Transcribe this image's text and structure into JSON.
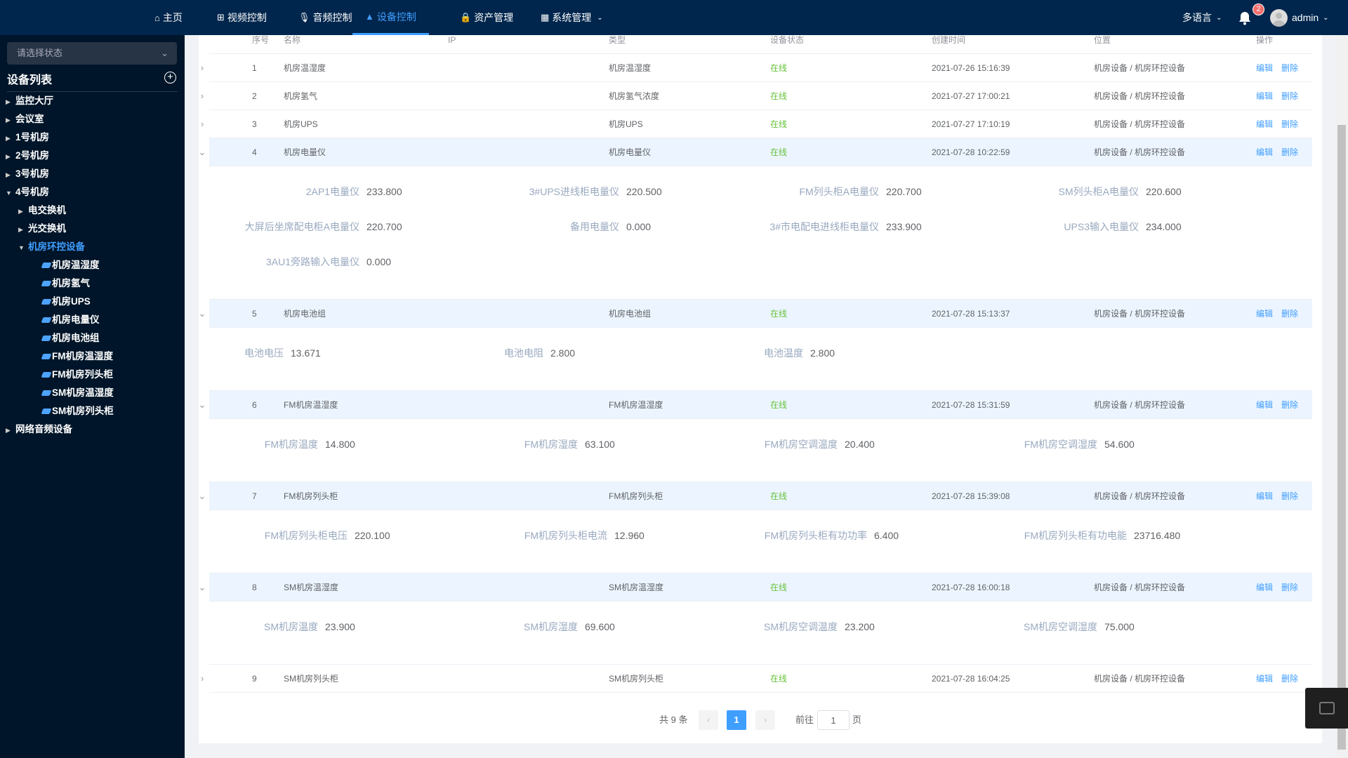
{
  "nav": {
    "items": [
      {
        "label": "主页",
        "icon": "home-icon"
      },
      {
        "label": "视频控制",
        "icon": "network-icon"
      },
      {
        "label": "音频控制",
        "icon": "microphone-icon"
      },
      {
        "label": "设备控制",
        "icon": "device-icon",
        "active": true
      },
      {
        "label": "资产管理",
        "icon": "lock-icon"
      },
      {
        "label": "系统管理",
        "icon": "grid-icon"
      }
    ],
    "language": "多语言",
    "notifications": "2",
    "user": "admin"
  },
  "sidebar": {
    "status_placeholder": "请选择状态",
    "title": "设备列表",
    "tree": [
      {
        "label": "监控大厅",
        "level": 0,
        "arrow": "right"
      },
      {
        "label": "会议室",
        "level": 0,
        "arrow": "right"
      },
      {
        "label": "1号机房",
        "level": 0,
        "arrow": "right"
      },
      {
        "label": "2号机房",
        "level": 0,
        "arrow": "right"
      },
      {
        "label": "3号机房",
        "level": 0,
        "arrow": "right"
      },
      {
        "label": "4号机房",
        "level": 0,
        "arrow": "down"
      },
      {
        "label": "电交换机",
        "level": 1,
        "arrow": "right"
      },
      {
        "label": "光交换机",
        "level": 1,
        "arrow": "right"
      },
      {
        "label": "机房环控设备",
        "level": 1,
        "arrow": "down",
        "active": true
      },
      {
        "label": "机房温湿度",
        "level": 2
      },
      {
        "label": "机房氢气",
        "level": 2
      },
      {
        "label": "机房UPS",
        "level": 2
      },
      {
        "label": "机房电量仪",
        "level": 2
      },
      {
        "label": "机房电池组",
        "level": 2
      },
      {
        "label": "FM机房温湿度",
        "level": 2
      },
      {
        "label": "FM机房列头柜",
        "level": 2
      },
      {
        "label": "SM机房温湿度",
        "level": 2
      },
      {
        "label": "SM机房列头柜",
        "level": 2
      },
      {
        "label": "网络音频设备",
        "level": 0,
        "arrow": "right"
      }
    ]
  },
  "table": {
    "columns": [
      "序号",
      "名称",
      "IP",
      "类型",
      "设备状态",
      "创建时间",
      "位置",
      "操作"
    ],
    "edit_label": "编辑",
    "delete_label": "删除",
    "rows": [
      {
        "no": "1",
        "name": "机房温湿度",
        "ip": "",
        "type": "机房温湿度",
        "status": "在线",
        "created": "2021-07-26 15:16:39",
        "location": "机房设备 / 机房环控设备",
        "expanded": false
      },
      {
        "no": "2",
        "name": "机房氢气",
        "ip": "",
        "type": "机房氢气浓度",
        "status": "在线",
        "created": "2021-07-27 17:00:21",
        "location": "机房设备 / 机房环控设备",
        "expanded": false
      },
      {
        "no": "3",
        "name": "机房UPS",
        "ip": "",
        "type": "机房UPS",
        "status": "在线",
        "created": "2021-07-27 17:10:19",
        "location": "机房设备 / 机房环控设备",
        "expanded": false
      },
      {
        "no": "4",
        "name": "机房电量仪",
        "ip": "",
        "type": "机房电量仪",
        "status": "在线",
        "created": "2021-07-28 10:22:59",
        "location": "机房设备 / 机房环控设备",
        "expanded": true,
        "details": [
          [
            "2AP1电量仪",
            "233.800"
          ],
          [
            "3#UPS进线柜电量仪",
            "220.500"
          ],
          [
            "FM列头柜A电量仪",
            "220.700"
          ],
          [
            "SM列头柜A电量仪",
            "220.600"
          ],
          [
            "大屏后坐席配电柜A电量仪",
            "220.700"
          ],
          [
            "备用电量仪",
            "0.000"
          ],
          [
            "3#市电配电进线柜电量仪",
            "233.900"
          ],
          [
            "UPS3输入电量仪",
            "234.000"
          ],
          [
            "3AU1旁路输入电量仪",
            "0.000"
          ]
        ]
      },
      {
        "no": "5",
        "name": "机房电池组",
        "ip": "",
        "type": "机房电池组",
        "status": "在线",
        "created": "2021-07-28 15:13:37",
        "location": "机房设备 / 机房环控设备",
        "expanded": true,
        "details": [
          [
            "电池电压",
            "13.671"
          ],
          [
            "电池电阻",
            "2.800"
          ],
          [
            "电池温度",
            "2.800"
          ]
        ]
      },
      {
        "no": "6",
        "name": "FM机房温湿度",
        "ip": "",
        "type": "FM机房温湿度",
        "status": "在线",
        "created": "2021-07-28 15:31:59",
        "location": "机房设备 / 机房环控设备",
        "expanded": true,
        "details": [
          [
            "FM机房温度",
            "14.800"
          ],
          [
            "FM机房湿度",
            "63.100"
          ],
          [
            "FM机房空调温度",
            "20.400"
          ],
          [
            "FM机房空调湿度",
            "54.600"
          ]
        ]
      },
      {
        "no": "7",
        "name": "FM机房列头柜",
        "ip": "",
        "type": "FM机房列头柜",
        "status": "在线",
        "created": "2021-07-28 15:39:08",
        "location": "机房设备 / 机房环控设备",
        "expanded": true,
        "details": [
          [
            "FM机房列头柜电压",
            "220.100"
          ],
          [
            "FM机房列头柜电流",
            "12.960"
          ],
          [
            "FM机房列头柜有功功率",
            "6.400"
          ],
          [
            "FM机房列头柜有功电能",
            "23716.480"
          ]
        ]
      },
      {
        "no": "8",
        "name": "SM机房温湿度",
        "ip": "",
        "type": "SM机房温湿度",
        "status": "在线",
        "created": "2021-07-28 16:00:18",
        "location": "机房设备 / 机房环控设备",
        "expanded": true,
        "details": [
          [
            "SM机房温度",
            "23.900"
          ],
          [
            "SM机房湿度",
            "69.600"
          ],
          [
            "SM机房空调温度",
            "23.200"
          ],
          [
            "SM机房空调湿度",
            "75.000"
          ]
        ]
      },
      {
        "no": "9",
        "name": "SM机房列头柜",
        "ip": "",
        "type": "SM机房列头柜",
        "status": "在线",
        "created": "2021-07-28 16:04:25",
        "location": "机房设备 / 机房环控设备",
        "expanded": false
      }
    ]
  },
  "pagination": {
    "total": "共 9 条",
    "current": "1",
    "goto_label": "前往",
    "goto_value": "1",
    "page_suffix": "页"
  },
  "colors": {
    "header": "#00264d",
    "sidebar": "#001529",
    "accent": "#409eff",
    "online": "#67c23a"
  }
}
